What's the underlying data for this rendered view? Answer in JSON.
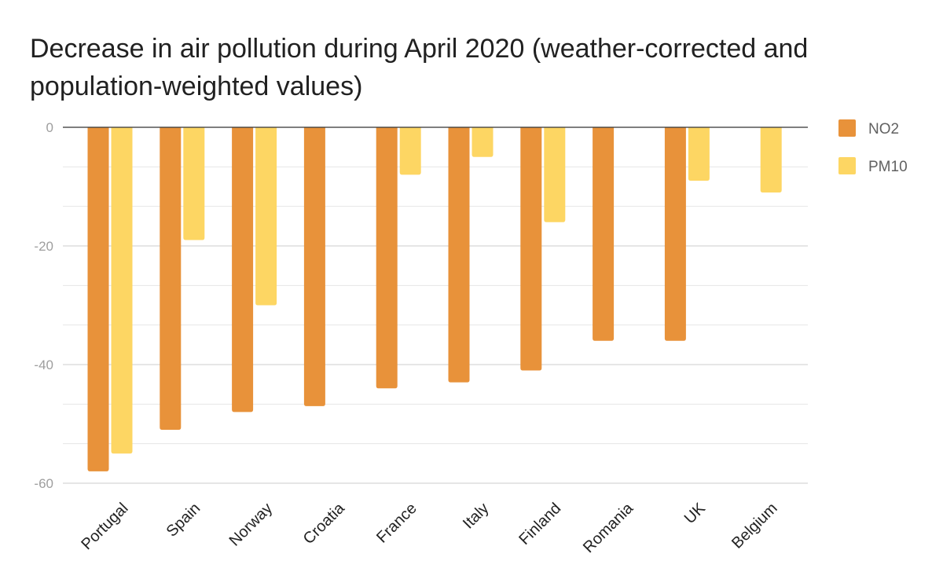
{
  "chart_data": {
    "type": "bar",
    "title": "Decrease in air pollution during April 2020 (weather-corrected and population-weighted values)",
    "categories": [
      "Portugal",
      "Spain",
      "Norway",
      "Croatia",
      "France",
      "Italy",
      "Finland",
      "Romania",
      "UK",
      "Belgium"
    ],
    "series": [
      {
        "name": "NO2",
        "color": "#E8923A",
        "values": [
          -58,
          -51,
          -48,
          -47,
          -44,
          -43,
          -41,
          -36,
          -36,
          null
        ]
      },
      {
        "name": "PM10",
        "color": "#FDD663",
        "values": [
          -55,
          -19,
          -30,
          null,
          -8,
          -5,
          -16,
          null,
          -9,
          -11
        ]
      }
    ],
    "yticks": [
      "0",
      "-20",
      "-40",
      "-60"
    ],
    "ylim": [
      -60,
      0
    ],
    "grid": true,
    "legend": "right",
    "xlabel": "",
    "ylabel": ""
  }
}
